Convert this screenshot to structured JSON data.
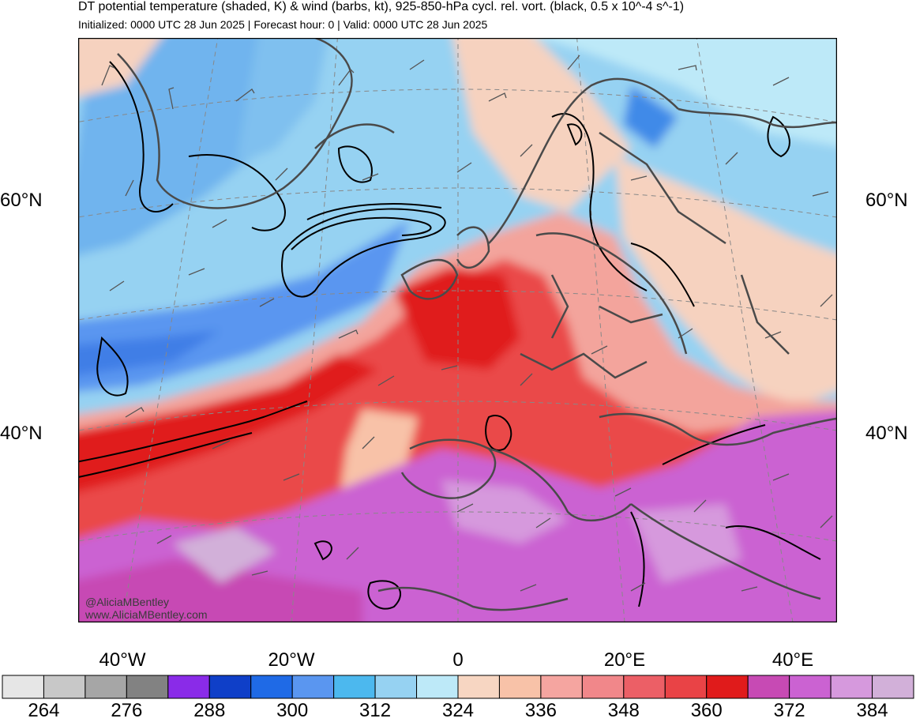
{
  "title": "DT potential temperature (shaded, K) & wind (barbs, kt), 925-850-hPa cycl. rel. vort. (black, 0.5 x 10^-4 s^-1)",
  "subtitle": "Initialized: 0000 UTC 28 Jun 2025 | Forecast hour: 0 | Valid: 0000 UTC 28 Jun 2025",
  "latitude_labels": {
    "lat60_left": "60°N",
    "lat60_right": "60°N",
    "lat40_left": "40°N",
    "lat40_right": "40°N"
  },
  "longitude_labels": {
    "lon40w": "40°W",
    "lon20w": "20°W",
    "lon0": "0",
    "lon20e": "20°E",
    "lon40e": "40°E"
  },
  "credits": {
    "handle": "@AliciaMBentley",
    "website": "www.AliciaMBentley.com"
  },
  "colorbar": {
    "units": "K",
    "labels": [
      "264",
      "276",
      "288",
      "300",
      "312",
      "324",
      "336",
      "348",
      "360",
      "372",
      "384"
    ],
    "colors": [
      "#e6e6e6",
      "#c8c8c8",
      "#a6a6a6",
      "#828282",
      "#8a2be8",
      "#0f3fc8",
      "#1f6ae6",
      "#5a96f0",
      "#4cb8ee",
      "#96d2f2",
      "#bde9f8",
      "#f7d6c2",
      "#f8c2a8",
      "#f5a5a0",
      "#f1878a",
      "#ec5f66",
      "#e94346",
      "#e01b1b",
      "#c74ab4",
      "#cb62d2",
      "#d699dd",
      "#d2b0d9"
    ]
  },
  "map_colors": {
    "cold_blue": "#3f8ae8",
    "blue": "#7fc0ef",
    "light_blue": "#b8e2f6",
    "peach": "#f6d2bf",
    "salmon": "#f3a49c",
    "red": "#ea4848",
    "deep_red": "#e01b1b",
    "magenta": "#c45ad0",
    "lavender": "#d3a0dc",
    "contour": "#000000",
    "borders": "#4a4a4a",
    "barbs": "#555555"
  }
}
